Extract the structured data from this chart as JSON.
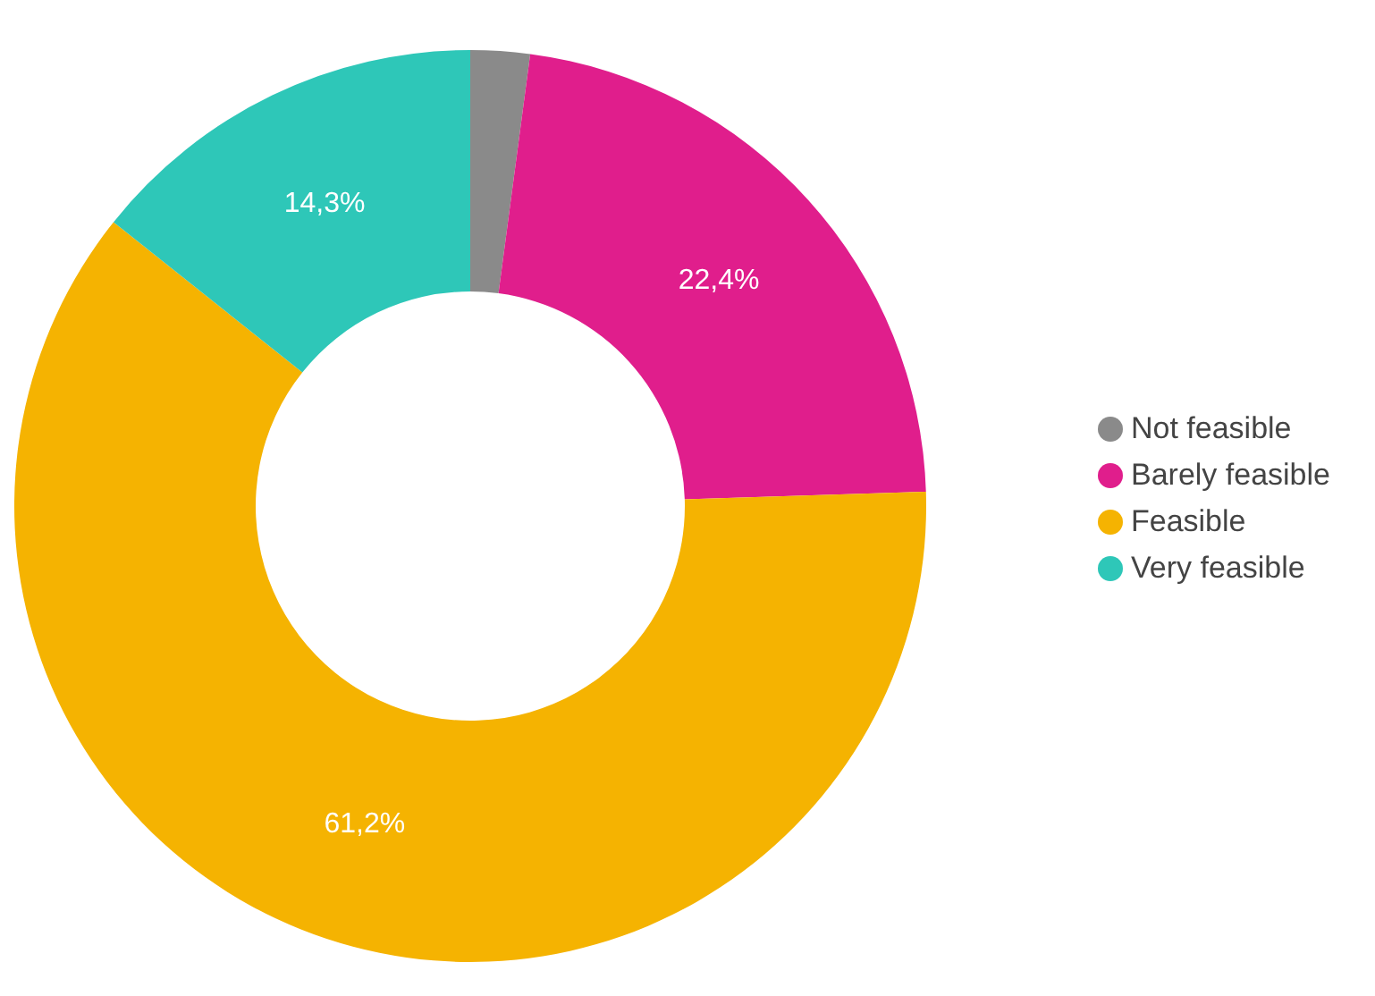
{
  "chart_data": {
    "type": "donut",
    "categories": [
      "Not feasible",
      "Barely feasible",
      "Feasible",
      "Very feasible"
    ],
    "values": [
      2.1,
      22.4,
      61.2,
      14.3
    ],
    "colors": [
      "#8a8a8a",
      "#e01e8c",
      "#f5b301",
      "#2ec7b8"
    ],
    "value_labels": [
      null,
      "22,4%",
      "61,2%",
      "14,3%"
    ],
    "legend": "right"
  }
}
